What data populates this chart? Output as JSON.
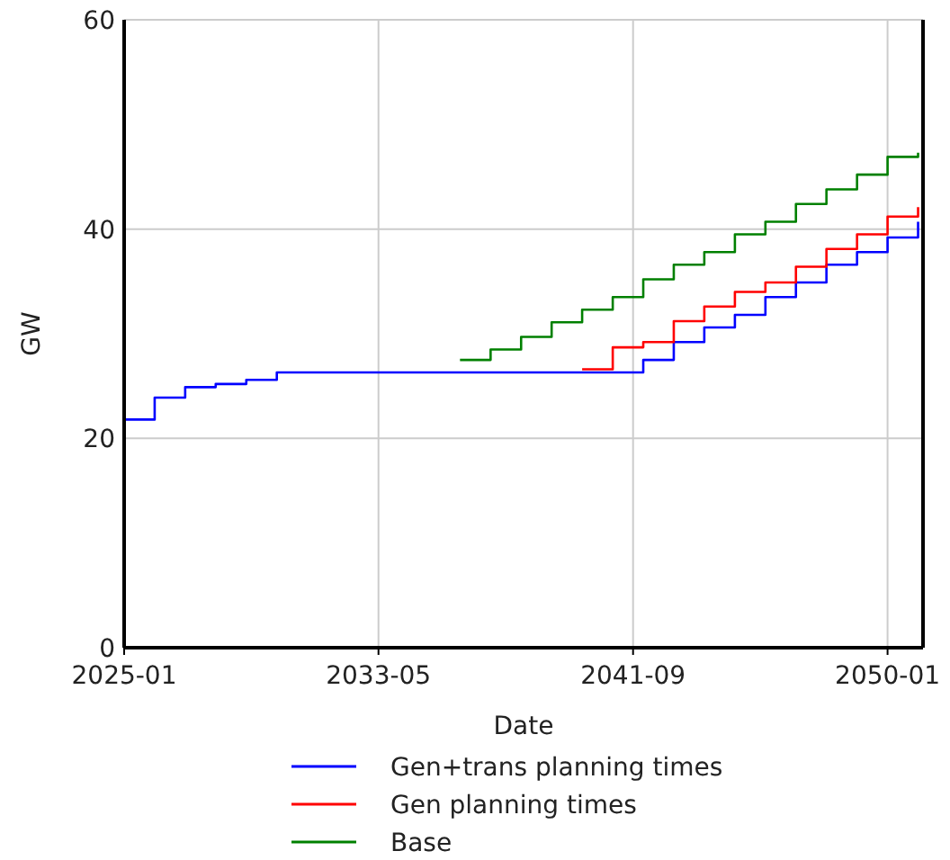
{
  "chart_data": {
    "type": "step",
    "xlabel": "Date",
    "ylabel": "GW",
    "x": [
      "2025-01",
      "2026-01",
      "2027-01",
      "2028-01",
      "2029-01",
      "2030-01",
      "2031-01",
      "2032-01",
      "2033-01",
      "2034-01",
      "2035-01",
      "2036-01",
      "2037-01",
      "2038-01",
      "2039-01",
      "2040-01",
      "2041-01",
      "2042-01",
      "2043-01",
      "2044-01",
      "2045-01",
      "2046-01",
      "2047-01",
      "2048-01",
      "2049-01",
      "2050-01",
      "2051-01"
    ],
    "series": [
      {
        "name": "Gen+trans planning times",
        "color": "#0000ff",
        "values": [
          21.8,
          23.9,
          24.9,
          25.2,
          25.6,
          26.3,
          26.3,
          26.3,
          26.3,
          26.3,
          26.3,
          26.3,
          26.3,
          26.3,
          26.3,
          26.3,
          26.3,
          27.5,
          29.2,
          30.6,
          31.8,
          33.5,
          34.9,
          36.6,
          37.8,
          39.2,
          40.7
        ]
      },
      {
        "name": "Gen planning times",
        "color": "#ff0000",
        "values": [
          null,
          null,
          null,
          null,
          null,
          null,
          null,
          null,
          null,
          null,
          null,
          null,
          null,
          null,
          null,
          26.6,
          28.7,
          29.2,
          31.2,
          32.6,
          34.0,
          34.9,
          36.4,
          38.1,
          39.5,
          41.2,
          42.1
        ]
      },
      {
        "name": "Base",
        "color": "#008000",
        "values": [
          null,
          null,
          null,
          null,
          null,
          null,
          null,
          null,
          null,
          null,
          null,
          27.5,
          28.5,
          29.7,
          31.1,
          32.3,
          33.5,
          35.2,
          36.6,
          37.8,
          39.5,
          40.7,
          42.4,
          43.8,
          45.2,
          46.9,
          47.3
        ]
      }
    ],
    "xlim": [
      "2025-01",
      "2051-03"
    ],
    "xticks": [
      "2025-01",
      "2033-05",
      "2041-09",
      "2050-01"
    ],
    "ylim": [
      0,
      60
    ],
    "yticks": [
      0,
      20,
      40,
      60
    ],
    "grid": true,
    "legend": "bottom",
    "line_style": "solid"
  }
}
